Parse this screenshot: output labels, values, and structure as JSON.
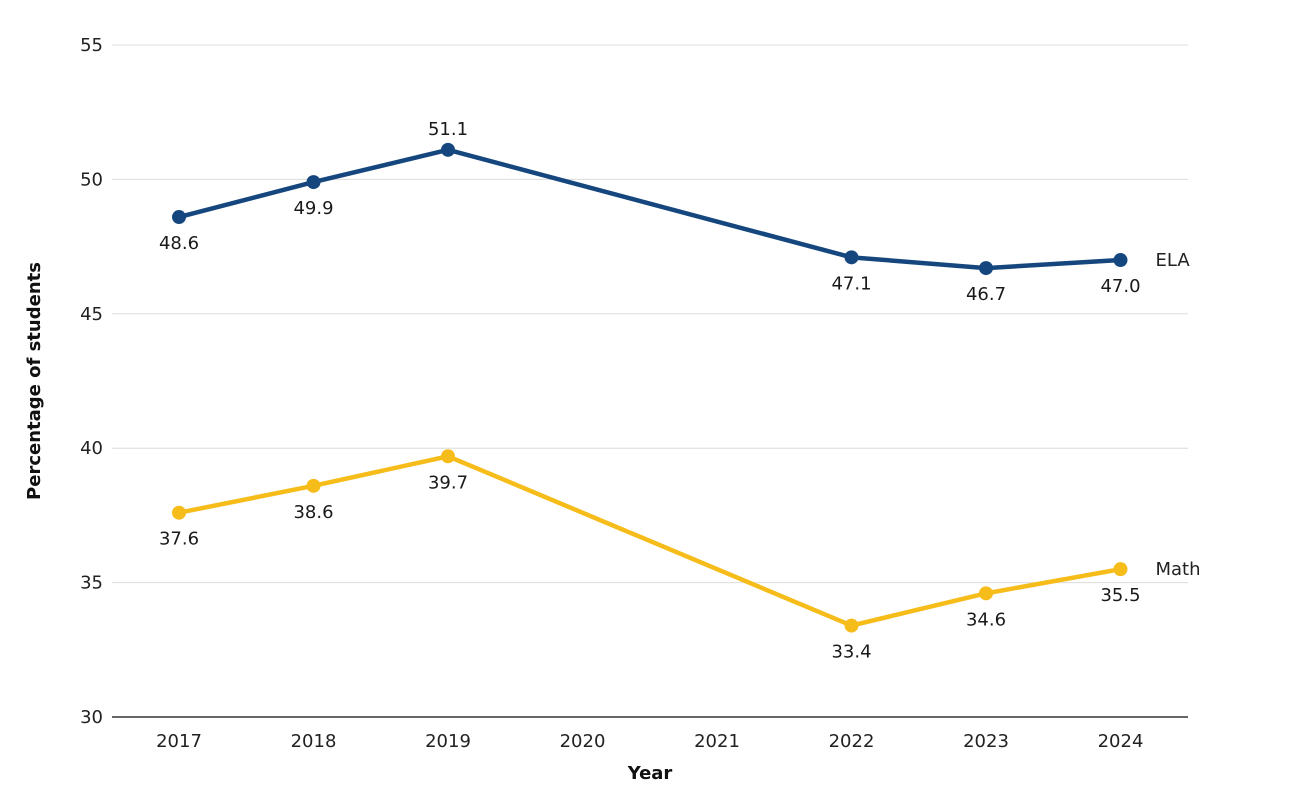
{
  "chart_data": {
    "type": "line",
    "title": "",
    "xlabel": "Year",
    "ylabel": "Percentage of students",
    "x": [
      "2017",
      "2018",
      "2019",
      "2020",
      "2021",
      "2022",
      "2023",
      "2024"
    ],
    "y_ticks": [
      30,
      35,
      40,
      45,
      50,
      55
    ],
    "ylim": [
      30,
      55
    ],
    "grid": true,
    "series": [
      {
        "key": "ela",
        "name": "ELA",
        "color": "#15477e",
        "label_position": [
          "below",
          "below",
          "above",
          null,
          null,
          "below",
          "below",
          "below"
        ],
        "values": [
          48.6,
          49.9,
          51.1,
          null,
          null,
          47.1,
          46.7,
          47.0
        ],
        "value_labels": [
          "48.6",
          "49.9",
          "51.1",
          null,
          null,
          "47.1",
          "46.7",
          "47.0"
        ]
      },
      {
        "key": "math",
        "name": "Math",
        "color": "#f6bc1a",
        "label_position": [
          "below",
          "below",
          "below",
          null,
          null,
          "below",
          "below",
          "below"
        ],
        "values": [
          37.6,
          38.6,
          39.7,
          null,
          null,
          33.4,
          34.6,
          35.5
        ],
        "value_labels": [
          "37.6",
          "38.6",
          "39.7",
          null,
          null,
          "33.4",
          "34.6",
          "35.5"
        ]
      }
    ]
  }
}
